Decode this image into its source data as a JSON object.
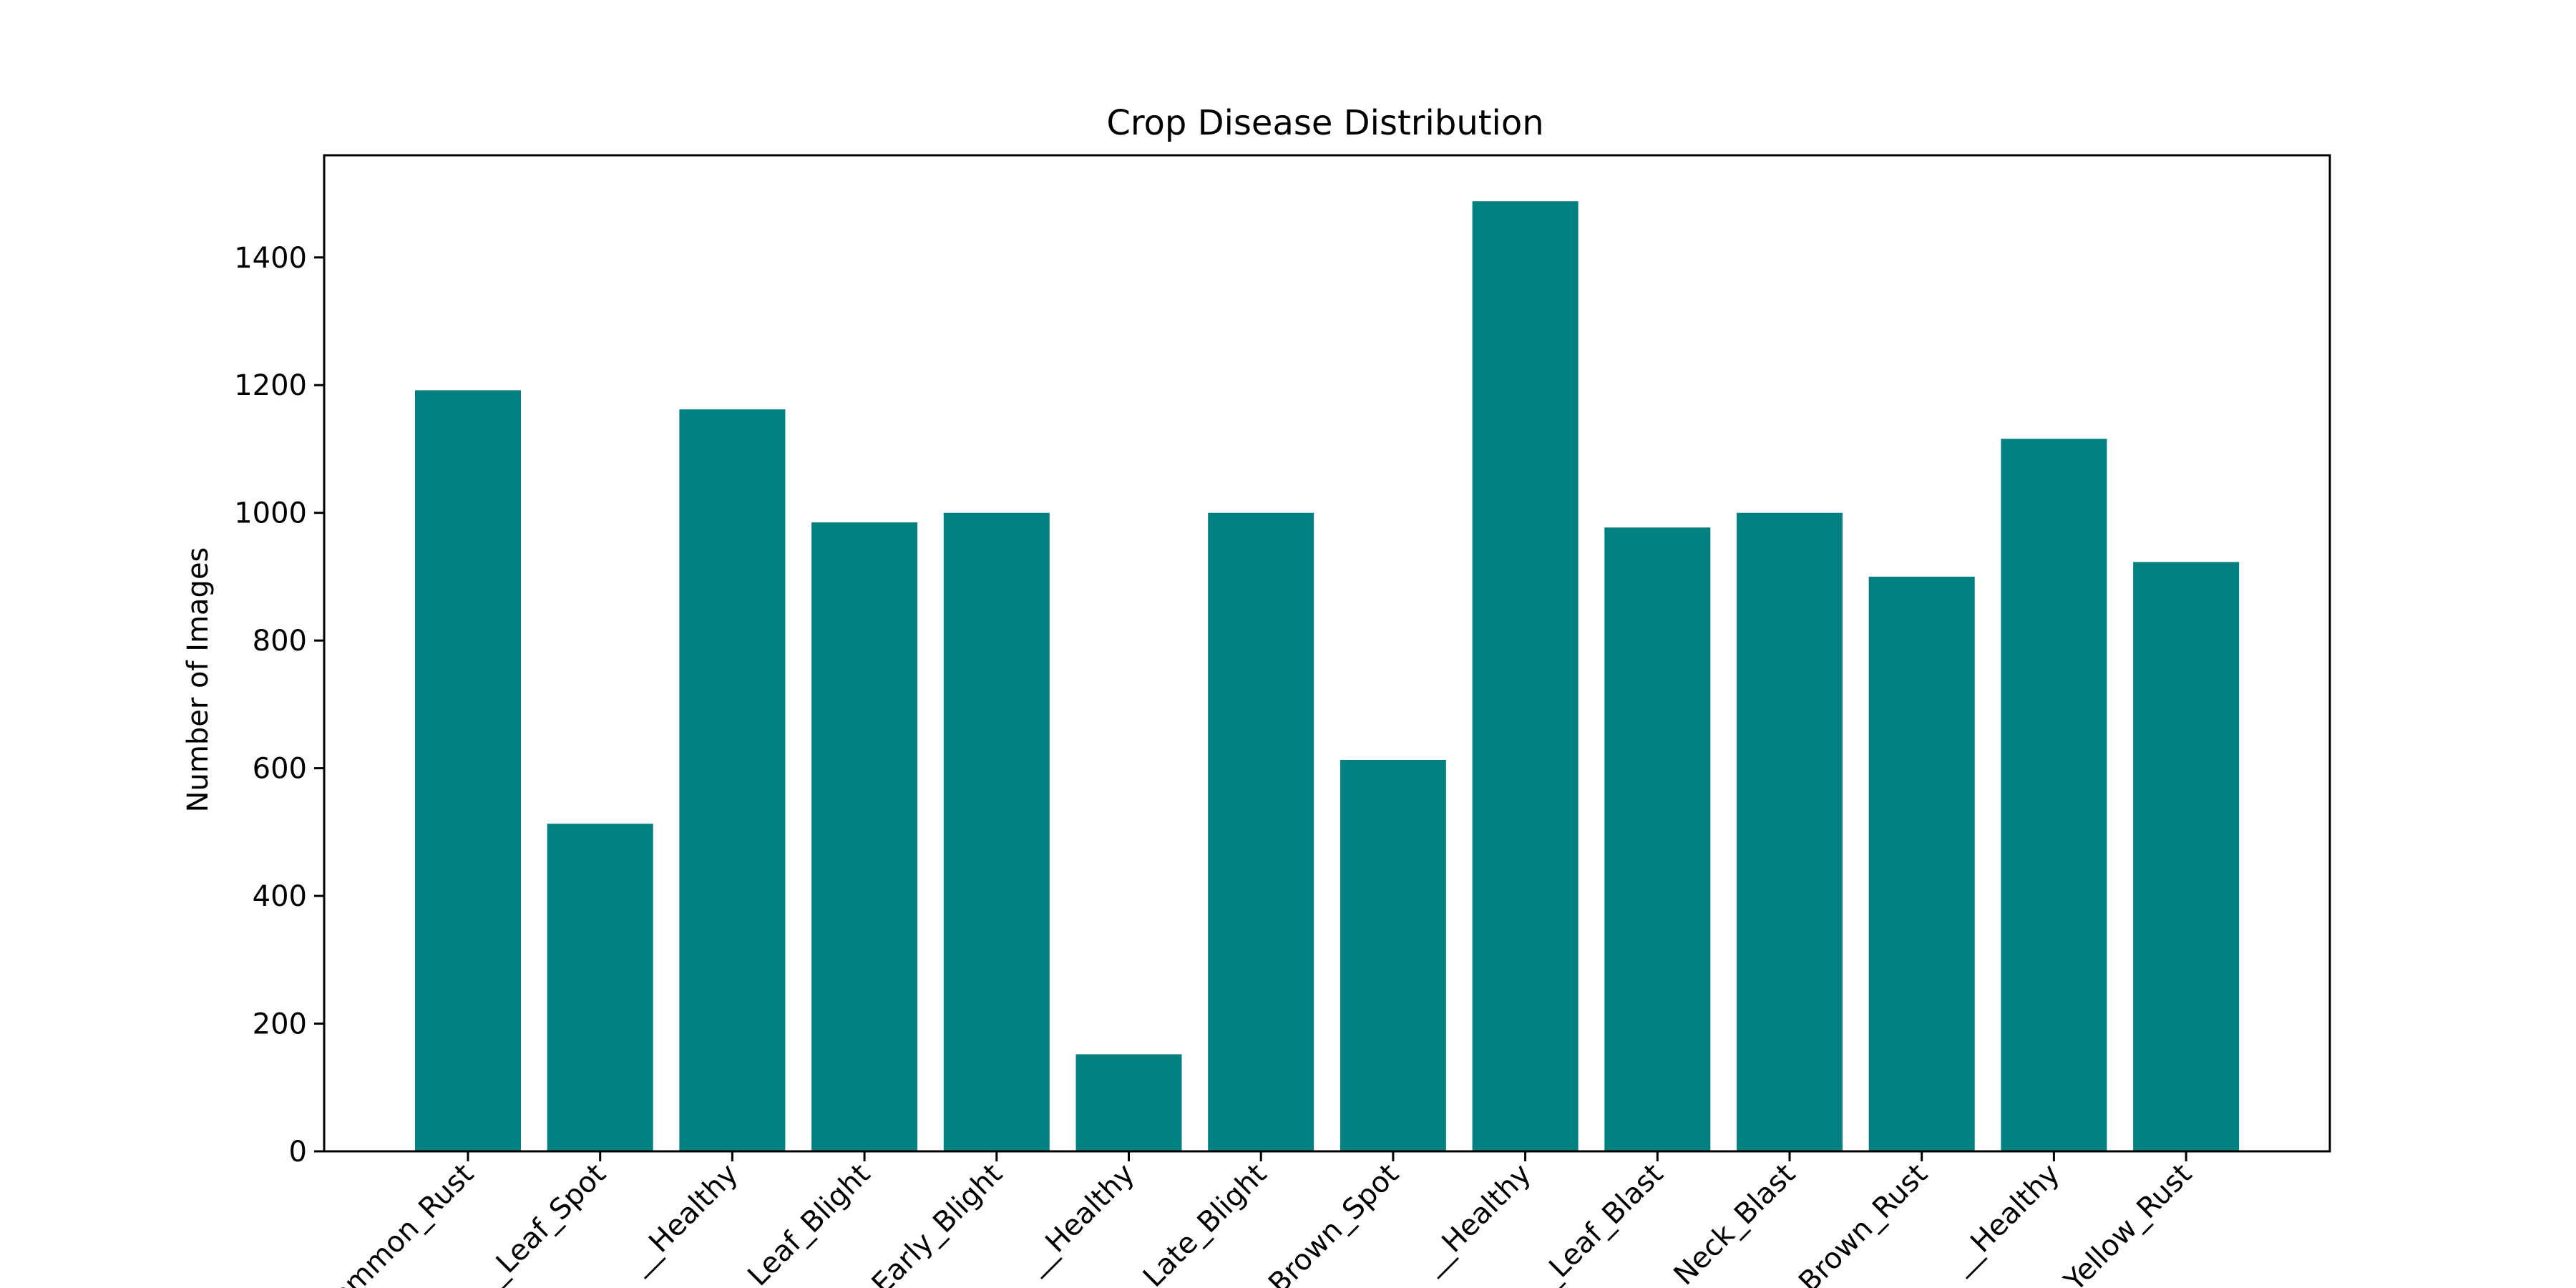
{
  "colors": {
    "bar": "#008080",
    "axis": "#000000",
    "background": "#ffffff"
  },
  "chart_data": {
    "type": "bar",
    "title": "Crop Disease Distribution",
    "xlabel": "",
    "ylabel": "Number of Images",
    "ylim": [
      0,
      1560
    ],
    "yticks": [
      0,
      200,
      400,
      600,
      800,
      1000,
      1200,
      1400
    ],
    "grid": false,
    "legend": "none",
    "categories": [
      "_Common_Rust",
      "_Leaf_Spot",
      "__Healthy",
      "_Leaf_Blight",
      "_Early_Blight",
      "__Healthy",
      "_Late_Blight",
      "_Brown_Spot",
      "__Healthy",
      "_Leaf_Blast",
      "_Neck_Blast",
      "_Brown_Rust",
      "__Healthy",
      "_Yellow_Rust"
    ],
    "values": [
      1192,
      513,
      1162,
      985,
      1000,
      152,
      1000,
      613,
      1488,
      977,
      1000,
      900,
      1116,
      923
    ]
  }
}
